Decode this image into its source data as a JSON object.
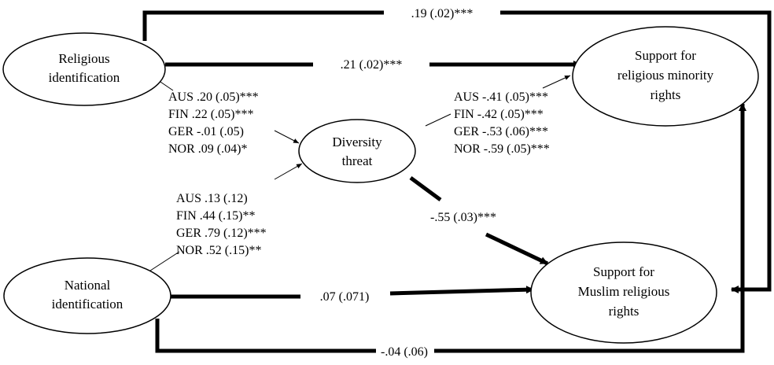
{
  "nodes": {
    "religious_identification": [
      "Religious",
      "identification"
    ],
    "national_identification": [
      "National",
      "identification"
    ],
    "diversity_threat": [
      "Diversity",
      "threat"
    ],
    "support_minority_rights": [
      "Support for",
      "religious minority",
      "rights"
    ],
    "support_muslim_rights": [
      "Support for",
      "Muslim religious",
      "rights"
    ]
  },
  "paths": {
    "religious_to_minority_direct": ".21 (.02)***",
    "religious_to_muslim_outer": ".19 (.02)***",
    "national_to_muslim_direct": ".07 (.071)",
    "national_to_minority_outer": "-.04 (.06)",
    "threat_to_muslim": "-.55 (.03)***"
  },
  "country_coefficients": {
    "religious_to_threat": [
      "AUS .20 (.05)***",
      "FIN .22 (.05)***",
      "GER -.01 (.05)",
      "NOR .09 (.04)*"
    ],
    "national_to_threat": [
      "AUS .13 (.12)",
      "FIN .44 (.15)**",
      "GER .79 (.12)***",
      "NOR .52 (.15)**"
    ],
    "threat_to_minority": [
      "AUS -.41 (.05)***",
      "FIN -.42 (.05)***",
      "GER -.53 (.06)***",
      "NOR -.59 (.05)***"
    ]
  }
}
